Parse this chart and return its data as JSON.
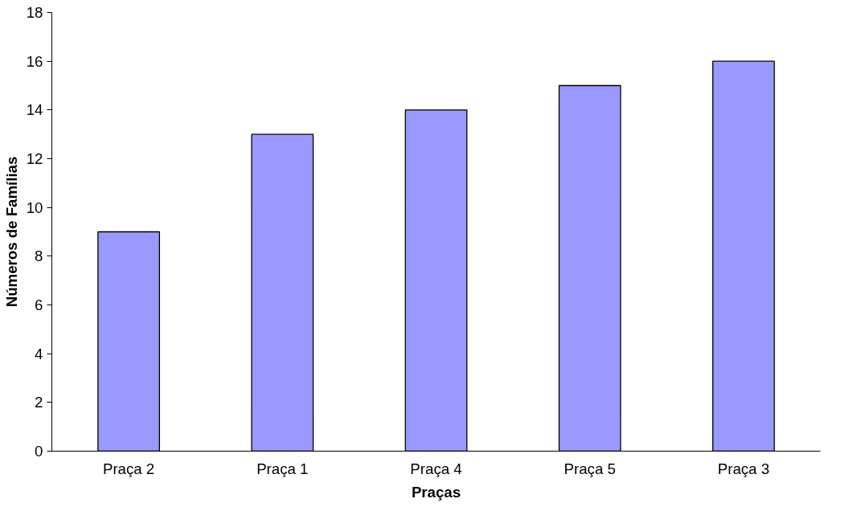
{
  "chart_data": {
    "type": "bar",
    "xlabel": "Praças",
    "ylabel": "Números de Famílias",
    "categories": [
      "Praça 2",
      "Praça 1",
      "Praça 4",
      "Praça 5",
      "Praça 3"
    ],
    "values": [
      9,
      13,
      14,
      15,
      16
    ],
    "color": "#9999ff",
    "ylim": [
      0,
      18
    ],
    "yticks": [
      0,
      2,
      4,
      6,
      8,
      10,
      12,
      14,
      16,
      18
    ],
    "grid": false
  }
}
